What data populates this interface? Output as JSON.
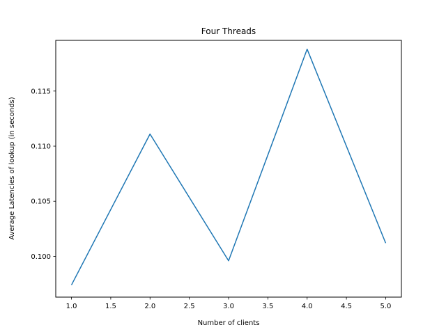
{
  "chart_data": {
    "type": "line",
    "title": "Four Threads",
    "xlabel": "Number of clients",
    "ylabel": "Average Latencies of lookup (in seconds)",
    "xlim": [
      0.8,
      5.2
    ],
    "ylim": [
      0.0963,
      0.1196
    ],
    "x_ticks": [
      1.0,
      1.5,
      2.0,
      2.5,
      3.0,
      3.5,
      4.0,
      4.5,
      5.0
    ],
    "x_tick_labels": [
      "1.0",
      "1.5",
      "2.0",
      "2.5",
      "3.0",
      "3.5",
      "4.0",
      "4.5",
      "5.0"
    ],
    "y_ticks": [
      0.1,
      0.105,
      0.11,
      0.115
    ],
    "y_tick_labels": [
      "0.100",
      "0.105",
      "0.110",
      "0.115"
    ],
    "grid": false,
    "legend": "none",
    "series": [
      {
        "color": "#1f77b4",
        "x": [
          1,
          2,
          3,
          4,
          5
        ],
        "y": [
          0.0974,
          0.1111,
          0.0996,
          0.1188,
          0.1012
        ]
      }
    ]
  }
}
